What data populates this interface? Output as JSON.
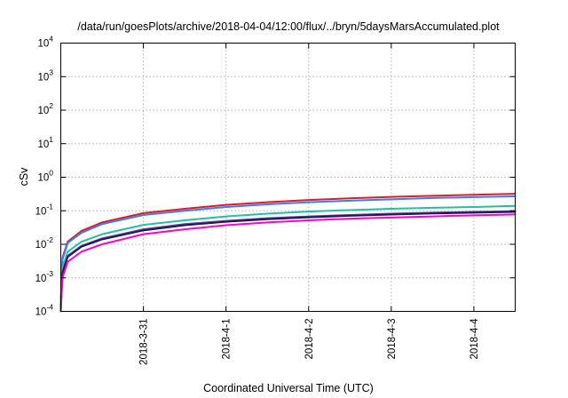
{
  "chart_data": {
    "type": "line",
    "title": "/data/run/goesPlots/archive/2018-04-04/12:00/flux/../bryn/5daysMarsAccumulated.plot",
    "xlabel": "Coordinated Universal Time (UTC)",
    "ylabel": "cSv",
    "yscale": "log",
    "ylim": [
      0.0001,
      10000
    ],
    "xlim": [
      "2018-03-30T00:00",
      "2018-04-04T12:00"
    ],
    "grid": true,
    "legend": "none",
    "xticks": [
      "2018-3-31",
      "2018-4-1",
      "2018-4-2",
      "2018-4-3",
      "2018-4-4"
    ],
    "yticks": [
      {
        "base": "10",
        "exp": "-4",
        "value": 0.0001
      },
      {
        "base": "10",
        "exp": "-3",
        "value": 0.001
      },
      {
        "base": "10",
        "exp": "-2",
        "value": 0.01
      },
      {
        "base": "10",
        "exp": "-1",
        "value": 0.1
      },
      {
        "base": "10",
        "exp": "0",
        "value": 1
      },
      {
        "base": "10",
        "exp": "1",
        "value": 10
      },
      {
        "base": "10",
        "exp": "2",
        "value": 100
      },
      {
        "base": "10",
        "exp": "3",
        "value": 1000
      },
      {
        "base": "10",
        "exp": "4",
        "value": 10000
      }
    ],
    "x": [
      "2018-03-30T00:00",
      "2018-03-30T00:30",
      "2018-03-30T02:00",
      "2018-03-30T06:00",
      "2018-03-30T12:00",
      "2018-03-31T00:00",
      "2018-03-31T12:00",
      "2018-04-01T00:00",
      "2018-04-01T12:00",
      "2018-04-02T00:00",
      "2018-04-02T12:00",
      "2018-04-03T00:00",
      "2018-04-03T12:00",
      "2018-04-04T00:00",
      "2018-04-04T12:00"
    ],
    "series": [
      {
        "color": "#e41a1c",
        "values": [
          0.0002,
          0.004,
          0.012,
          0.025,
          0.045,
          0.085,
          0.115,
          0.15,
          0.18,
          0.21,
          0.235,
          0.26,
          0.28,
          0.3,
          0.32
        ]
      },
      {
        "color": "#377eff",
        "values": [
          0.00018,
          0.0035,
          0.011,
          0.022,
          0.04,
          0.075,
          0.1,
          0.13,
          0.155,
          0.18,
          0.2,
          0.22,
          0.24,
          0.255,
          0.27
        ]
      },
      {
        "color": "#20c0a0",
        "values": [
          0.00015,
          0.002,
          0.006,
          0.012,
          0.02,
          0.038,
          0.052,
          0.068,
          0.082,
          0.095,
          0.105,
          0.115,
          0.123,
          0.13,
          0.14
        ]
      },
      {
        "color": "#6a3d9a",
        "values": [
          0.00012,
          0.0015,
          0.0045,
          0.009,
          0.015,
          0.028,
          0.04,
          0.05,
          0.06,
          0.068,
          0.075,
          0.082,
          0.088,
          0.093,
          0.098
        ]
      },
      {
        "color": "#1a1a5a",
        "values": [
          0.00011,
          0.0014,
          0.0042,
          0.0085,
          0.014,
          0.026,
          0.037,
          0.047,
          0.056,
          0.064,
          0.071,
          0.077,
          0.083,
          0.088,
          0.093
        ]
      },
      {
        "color": "#ff00cc",
        "values": [
          0.0001,
          0.001,
          0.003,
          0.006,
          0.01,
          0.02,
          0.028,
          0.037,
          0.045,
          0.052,
          0.058,
          0.063,
          0.068,
          0.073,
          0.078
        ]
      }
    ]
  }
}
